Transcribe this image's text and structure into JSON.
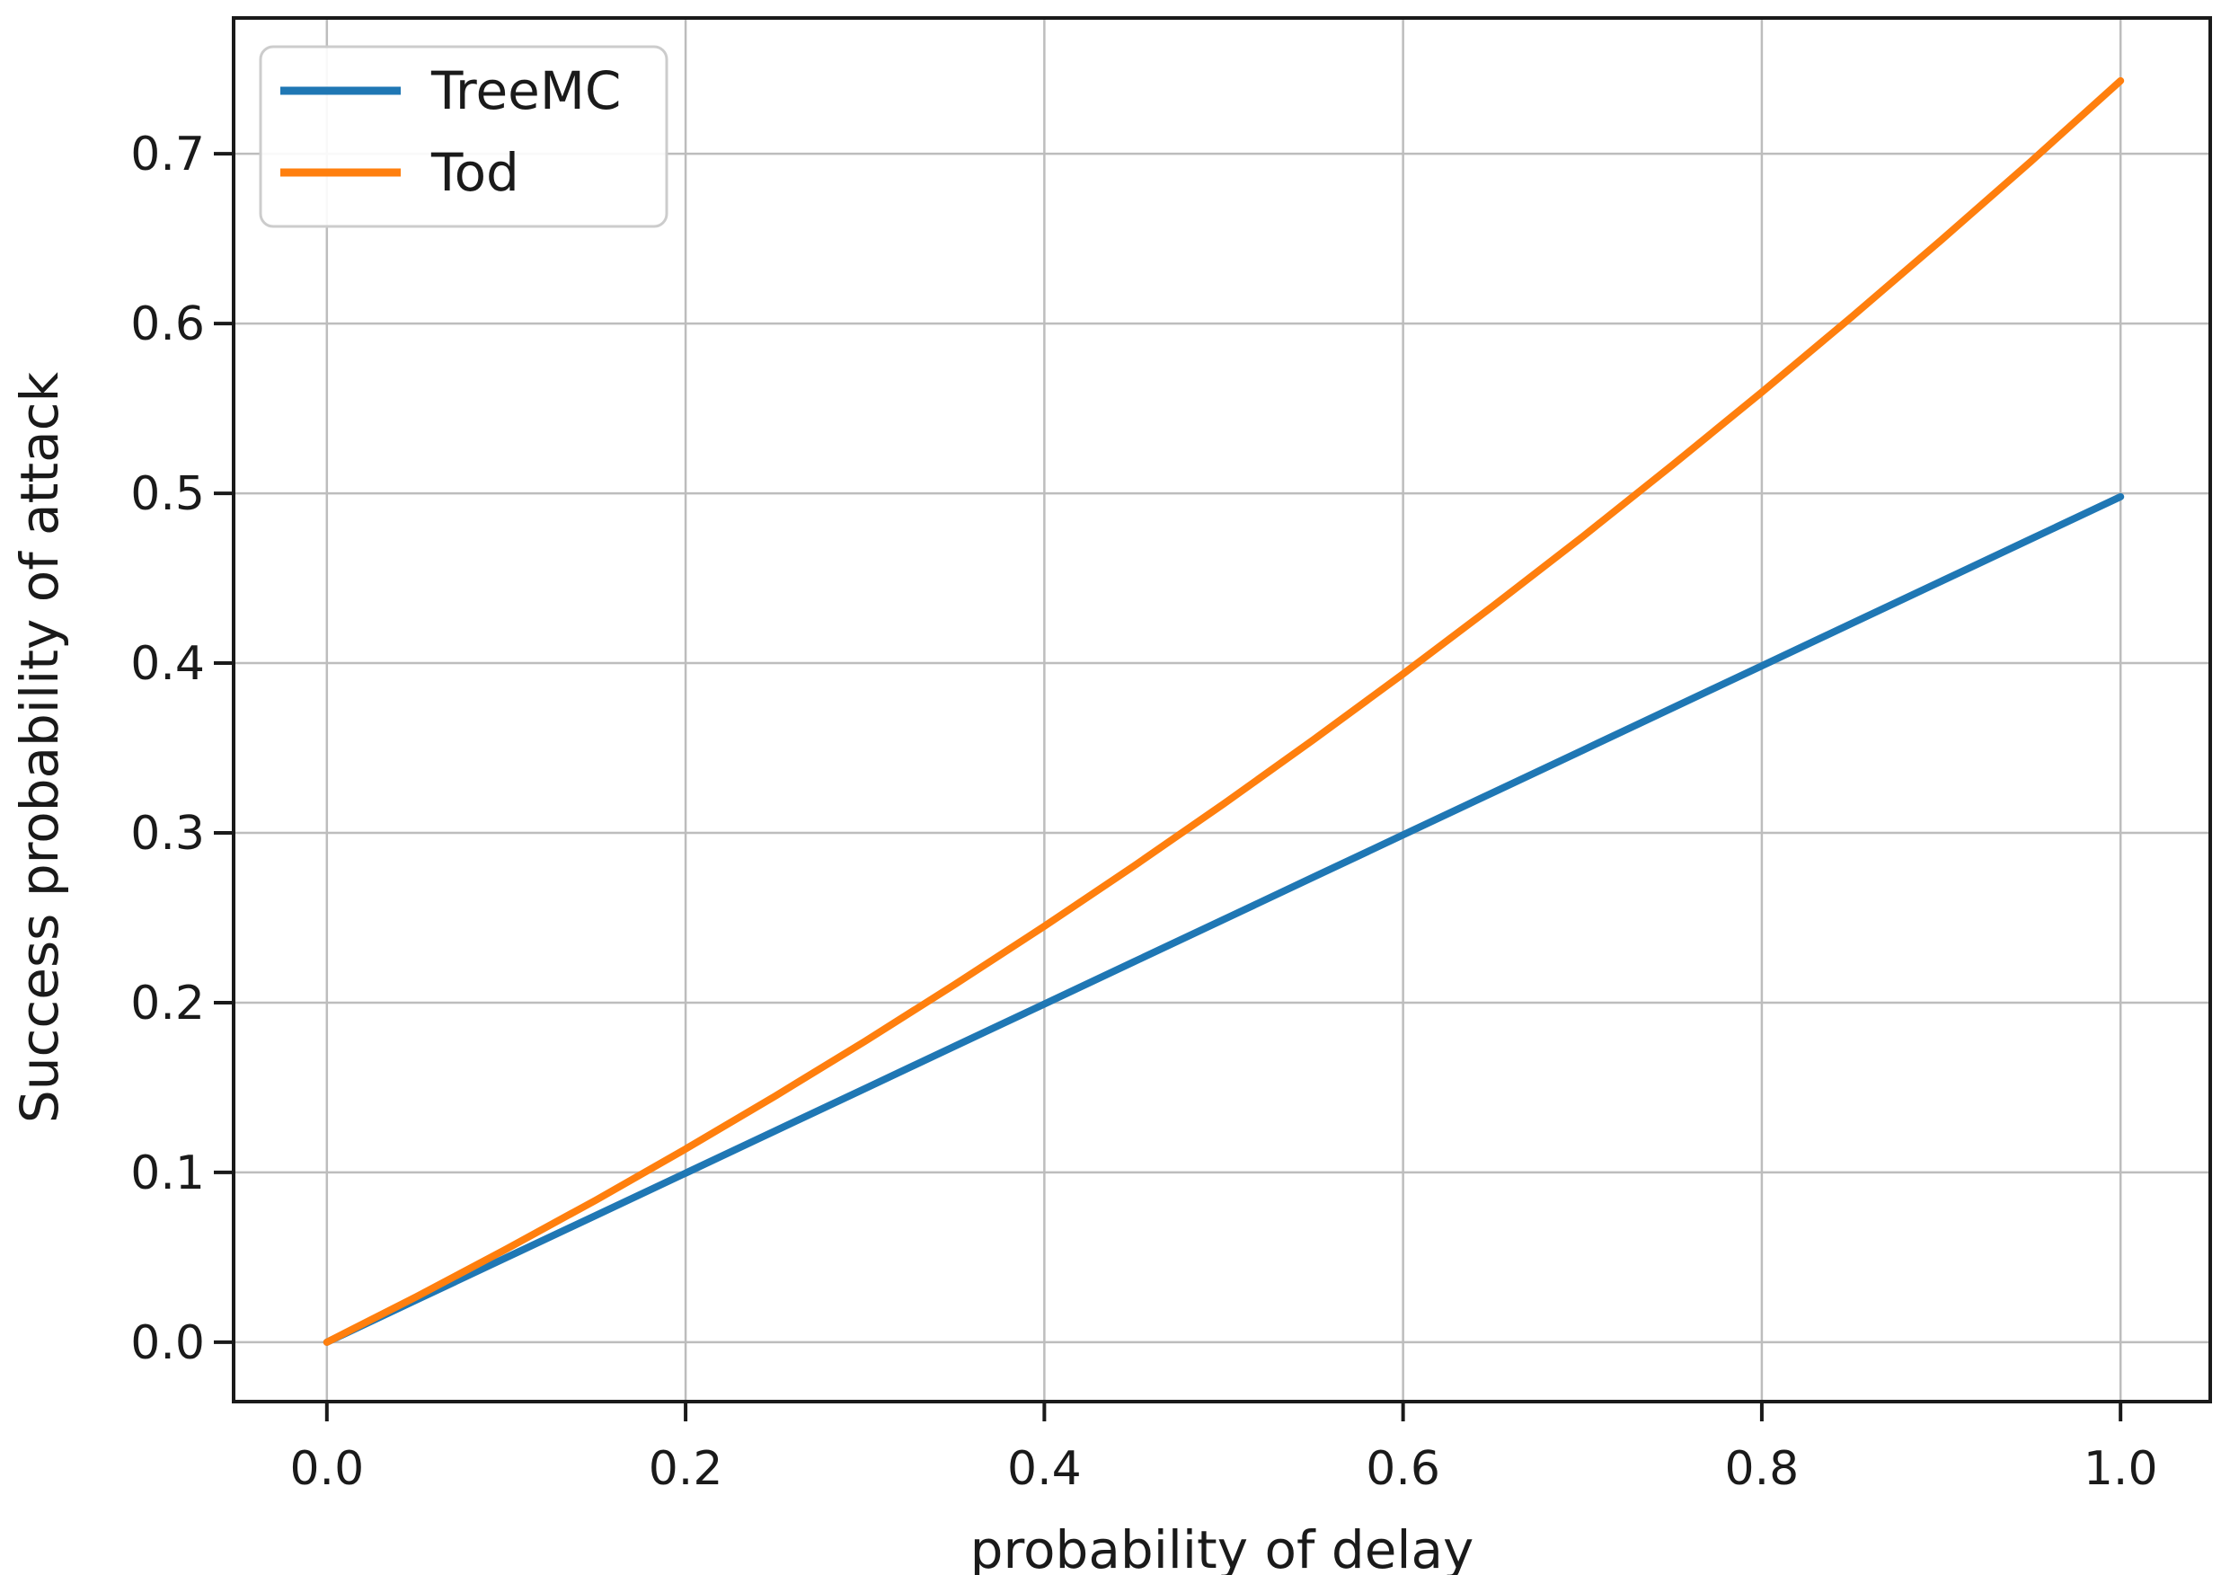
{
  "chart_data": {
    "type": "line",
    "title": "",
    "xlabel": "probability of delay",
    "ylabel": "Success probability of attack",
    "x": [
      0,
      0.05,
      0.1,
      0.15,
      0.2,
      0.25,
      0.3,
      0.35,
      0.4,
      0.45,
      0.5,
      0.55,
      0.6,
      0.65,
      0.7,
      0.75,
      0.8,
      0.85,
      0.9,
      0.95,
      1.0
    ],
    "series": [
      {
        "name": "TreeMC",
        "color": "#1f77b4",
        "values": [
          0,
          0.0249,
          0.0498,
          0.0747,
          0.0996,
          0.1245,
          0.1494,
          0.1743,
          0.1992,
          0.2241,
          0.249,
          0.2739,
          0.2988,
          0.3237,
          0.3486,
          0.3735,
          0.3984,
          0.4233,
          0.4482,
          0.4731,
          0.498
        ]
      },
      {
        "name": "Tod",
        "color": "#ff7f0e",
        "values": [
          0,
          0.0268,
          0.0548,
          0.0837,
          0.1138,
          0.145,
          0.1772,
          0.2106,
          0.245,
          0.2805,
          0.3171,
          0.3548,
          0.3936,
          0.4335,
          0.4744,
          0.5165,
          0.5596,
          0.6038,
          0.6491,
          0.6955,
          0.743
        ]
      }
    ],
    "xticks": {
      "values": [
        0.0,
        0.2,
        0.4,
        0.6,
        0.8,
        1.0
      ],
      "labels": [
        "0.0",
        "0.2",
        "0.4",
        "0.6",
        "0.8",
        "1.0"
      ]
    },
    "yticks": {
      "values": [
        0.0,
        0.1,
        0.2,
        0.3,
        0.4,
        0.5,
        0.6,
        0.7
      ],
      "labels": [
        "0.0",
        "0.1",
        "0.2",
        "0.3",
        "0.4",
        "0.5",
        "0.6",
        "0.7"
      ]
    },
    "xlim": [
      -0.052,
      1.05
    ],
    "ylim": [
      -0.035,
      0.78
    ],
    "grid": true,
    "legend": {
      "position": "upper left",
      "entries": [
        "TreeMC",
        "Tod"
      ]
    }
  },
  "colors": {
    "background": "#ffffff",
    "grid": "#bdbdbd",
    "spine": "#1a1a1a",
    "tick": "#1a1a1a",
    "tick_label": "#1a1a1a",
    "legend_border": "#cccccc",
    "legend_background": "#ffffff"
  }
}
